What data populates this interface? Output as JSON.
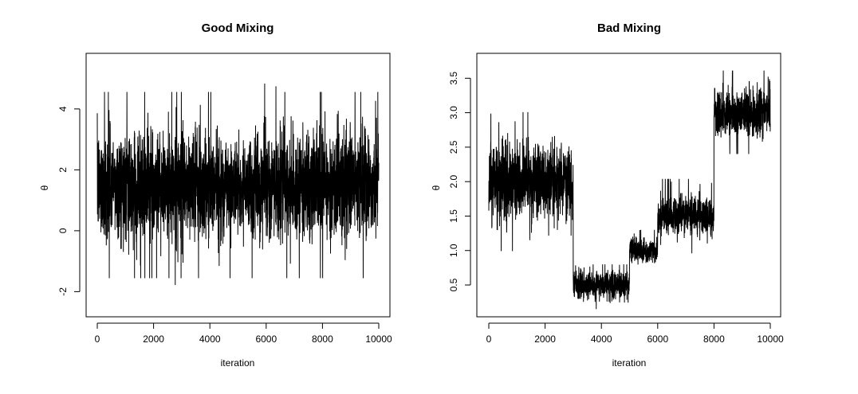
{
  "chart_data": [
    {
      "type": "line",
      "title": "Good Mixing",
      "xlabel": "iteration",
      "ylabel": "θ",
      "xlim": [
        0,
        10000
      ],
      "ylim": [
        -2.8,
        5.8
      ],
      "xticks": [
        0,
        2000,
        4000,
        6000,
        8000,
        10000
      ],
      "yticks": [
        -2,
        0,
        2,
        4
      ],
      "series": [
        {
          "segments": [
            {
              "x_start": 0,
              "x_end": 10000,
              "mean": 1.5,
              "sd": 0.85,
              "min": -2.5,
              "max": 5.6
            }
          ]
        }
      ],
      "grid": false,
      "color": "#000000"
    },
    {
      "type": "line",
      "title": "Bad Mixing",
      "xlabel": "iteration",
      "ylabel": "θ",
      "xlim": [
        0,
        10000
      ],
      "ylim": [
        0.05,
        3.85
      ],
      "xticks": [
        0,
        2000,
        4000,
        6000,
        8000,
        10000
      ],
      "yticks": [
        0.5,
        1.0,
        1.5,
        2.0,
        2.5,
        3.0,
        3.5
      ],
      "series": [
        {
          "segments": [
            {
              "x_start": 0,
              "x_end": 3000,
              "mean": 2.0,
              "sd": 0.28,
              "min": 0.4,
              "max": 3.5
            },
            {
              "x_start": 3000,
              "x_end": 5000,
              "mean": 0.5,
              "sd": 0.1,
              "min": 0.15,
              "max": 0.8
            },
            {
              "x_start": 5000,
              "x_end": 6000,
              "mean": 1.0,
              "sd": 0.09,
              "min": 0.75,
              "max": 1.3
            },
            {
              "x_start": 6000,
              "x_end": 8000,
              "mean": 1.5,
              "sd": 0.15,
              "min": 0.85,
              "max": 2.1
            },
            {
              "x_start": 8000,
              "x_end": 10000,
              "mean": 3.0,
              "sd": 0.17,
              "min": 2.4,
              "max": 3.7
            }
          ]
        }
      ],
      "grid": false,
      "color": "#000000"
    }
  ]
}
